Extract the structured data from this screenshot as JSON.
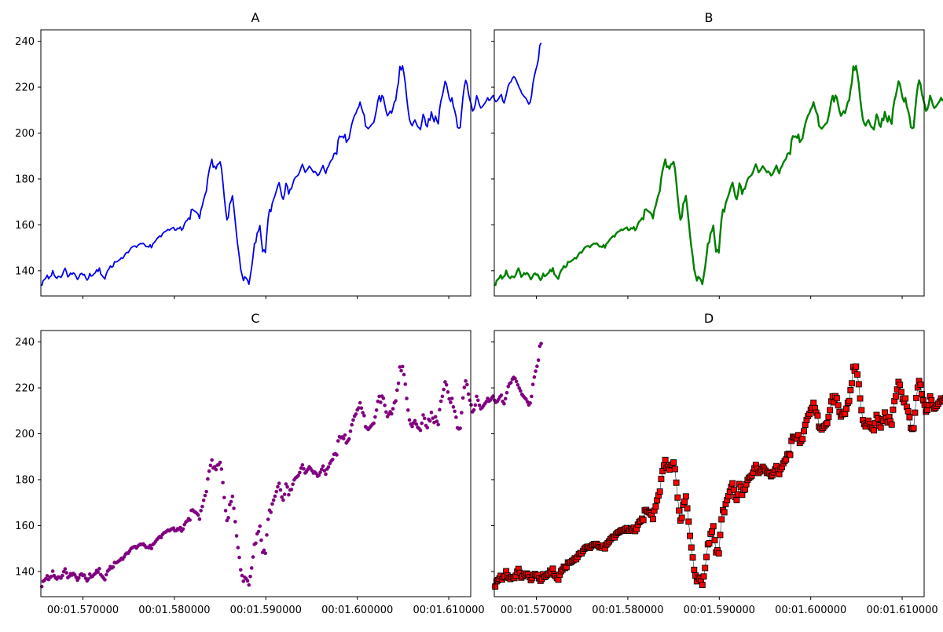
{
  "chart_data": [
    {
      "type": "line",
      "title": "A",
      "style": {
        "color": "#0000ee",
        "line_width": 1.8
      },
      "xlabel": "",
      "ylabel": "",
      "xlim": [
        1.5654,
        1.6124
      ],
      "ylim": [
        129,
        245
      ],
      "yticks": [
        140,
        160,
        180,
        200,
        220,
        240
      ],
      "xticks": [
        1.57,
        1.58,
        1.59,
        1.6,
        1.61
      ],
      "xtick_labels": [
        "",
        "",
        "",
        "",
        ""
      ],
      "grid": false
    },
    {
      "type": "line",
      "title": "B",
      "style": {
        "color": "#008000",
        "line_width": 2.4
      },
      "xlabel": "",
      "ylabel": "",
      "xlim": [
        1.5654,
        1.6124
      ],
      "ylim": [
        129,
        245
      ],
      "yticks": [
        140,
        160,
        180,
        200,
        220,
        240
      ],
      "ytick_labels": [
        "",
        "",
        "",
        "",
        "",
        ""
      ],
      "xticks": [
        1.57,
        1.58,
        1.59,
        1.6,
        1.61
      ],
      "xtick_labels": [
        "",
        "",
        "",
        "",
        ""
      ],
      "grid": false
    },
    {
      "type": "scatter",
      "title": "C",
      "style": {
        "color": "#800080",
        "marker": "circle",
        "marker_size": 2.3
      },
      "xlabel": "",
      "ylabel": "",
      "xlim": [
        1.5654,
        1.6124
      ],
      "ylim": [
        129,
        245
      ],
      "yticks": [
        140,
        160,
        180,
        200,
        220,
        240
      ],
      "xticks": [
        1.57,
        1.58,
        1.59,
        1.6,
        1.61
      ],
      "xtick_labels": [
        "00:01.570000",
        "00:01.580000",
        "00:01.590000",
        "00:01.600000",
        "00:01.610000"
      ],
      "grid": false
    },
    {
      "type": "line",
      "title": "D",
      "style": {
        "color": "#ff0000",
        "marker": "square",
        "marker_edge": "#000000",
        "marker_size": 7,
        "line_color": "#000000",
        "line_width": 0.5
      },
      "xlabel": "",
      "ylabel": "",
      "xlim": [
        1.5654,
        1.6124
      ],
      "ylim": [
        129,
        245
      ],
      "yticks": [
        140,
        160,
        180,
        200,
        220,
        240
      ],
      "ytick_labels": [
        "",
        "",
        "",
        "",
        "",
        ""
      ],
      "xticks": [
        1.57,
        1.58,
        1.59,
        1.6,
        1.61
      ],
      "xtick_labels": [
        "00:01.570000",
        "00:01.580000",
        "00:01.590000",
        "00:01.600000",
        "00:01.610000"
      ],
      "grid": false
    }
  ],
  "series": {
    "x_start": 1.5655,
    "x_step": 0.00015,
    "values": [
      133.4,
      135.7,
      136.2,
      136.9,
      138.1,
      136.5,
      137.4,
      137.8,
      140.1,
      138.2,
      137.2,
      136.7,
      137.6,
      137.4,
      137.1,
      138.2,
      139.9,
      141.1,
      139.4,
      137.3,
      137.9,
      139.0,
      138.4,
      139.1,
      138.6,
      137.5,
      136.2,
      137.1,
      138.5,
      138.9,
      138.2,
      138.4,
      137.0,
      135.9,
      136.7,
      138.8,
      137.6,
      137.9,
      138.6,
      139.1,
      140.4,
      139.7,
      141.2,
      138.6,
      137.9,
      137.1,
      136.4,
      138.6,
      140.1,
      140.8,
      142.1,
      141.5,
      141.9,
      143.9,
      143.8,
      144.0,
      144.5,
      144.9,
      145.7,
      145.3,
      146.3,
      147.5,
      148.0,
      147.9,
      148.9,
      149.9,
      150.4,
      150.7,
      150.8,
      150.2,
      151.0,
      151.5,
      151.9,
      151.7,
      152.0,
      151.3,
      150.5,
      150.6,
      150.3,
      151.3,
      150.0,
      151.7,
      152.3,
      153.1,
      154.0,
      154.6,
      155.2,
      154.8,
      156.1,
      156.8,
      157.1,
      157.5,
      158.0,
      157.7,
      158.2,
      158.6,
      158.9,
      157.7,
      157.8,
      158.6,
      158.3,
      159.1,
      157.6,
      158.5,
      160.4,
      161.5,
      162.0,
      163.0,
      162.4,
      166.6,
      166.8,
      166.1,
      165.8,
      165.3,
      164.6,
      162.8,
      166.5,
      168.3,
      171.0,
      173.1,
      174.8,
      180.3,
      183.7,
      186.2,
      188.6,
      185.1,
      185.6,
      184.4,
      186.3,
      186.6,
      187.5,
      184.6,
      178.7,
      172.2,
      166.5,
      162.2,
      163.4,
      169.1,
      170.4,
      172.7,
      167.5,
      161.7,
      155.5,
      150.4,
      146.1,
      140.7,
      138.2,
      135.7,
      137.4,
      136.8,
      135.9,
      134.1,
      137.8,
      141.5,
      146.3,
      151.8,
      152.3,
      156.4,
      157.4,
      159.7,
      153.6,
      148.3,
      149.2,
      147.9,
      155.9,
      162.7,
      166.7,
      165.8,
      169.4,
      171.1,
      172.8,
      174.8,
      176.9,
      178.4,
      175.5,
      172.4,
      171.1,
      173.6,
      178.1,
      176.8,
      173.4,
      175.5,
      175.7,
      178.0,
      179.9,
      180.8,
      181.2,
      181.8,
      183.1,
      185.0,
      186.4,
      184.7,
      182.9,
      183.6,
      184.5,
      185.6,
      184.8,
      183.9,
      182.9,
      183.3,
      182.7,
      181.5,
      181.9,
      183.2,
      184.5,
      185.9,
      183.9,
      182.4,
      184.6,
      185.5,
      187.1,
      188.1,
      188.8,
      191.0,
      191.3,
      190.8,
      196.9,
      198.7,
      198.3,
      198.6,
      197.9,
      199.4,
      196.0,
      196.9,
      197.7,
      201.1,
      203.9,
      206.0,
      207.7,
      208.6,
      210.4,
      211.3,
      213.5,
      211.2,
      209.2,
      207.9,
      203.1,
      202.5,
      201.9,
      202.6,
      203.4,
      204.1,
      204.6,
      207.3,
      210.3,
      214.1,
      216.3,
      213.7,
      216.4,
      215.5,
      212.4,
      209.5,
      207.5,
      208.5,
      209.6,
      208.7,
      210.9,
      213.5,
      214.3,
      219.0,
      222.0,
      229.1,
      227.5,
      229.3,
      225.8,
      221.6,
      215.4,
      210.3,
      206.0,
      204.2,
      203.2,
      204.7,
      205.7,
      204.2,
      202.8,
      202.3,
      201.5,
      204.6,
      208.2,
      206.7,
      203.6,
      202.7,
      206.3,
      205.6,
      209.3,
      206.8,
      204.9,
      207.4,
      205.4,
      204.0,
      210.5,
      214.2,
      216.3,
      219.3,
      222.6,
      221.3,
      218.2,
      215.2,
      213.7,
      215.4,
      211.7,
      209.8,
      207.2,
      202.6,
      202.1,
      202.4,
      209.2,
      215.6,
      220.2,
      223.0,
      221.4,
      217.3,
      214.6,
      212.6,
      209.6,
      210.4,
      212.5,
      216.3,
      214.6,
      212.4,
      210.9,
      211.4,
      212.2,
      213.1,
      214.0,
      215.4,
      214.2,
      214.7,
      215.6,
      216.4,
      214.6,
      213.7,
      214.1,
      215.0,
      216.1,
      216.8,
      214.1,
      213.1,
      215.3,
      217.9,
      220.6,
      221.8,
      222.3,
      223.8,
      224.6,
      224.1,
      222.8,
      221.3,
      219.9,
      218.7,
      217.2,
      216.4,
      215.7,
      215.1,
      213.9,
      212.6,
      213.4,
      216.3,
      221.5,
      224.7,
      227.3,
      229.4,
      232.1,
      238.2,
      239.3
    ]
  }
}
